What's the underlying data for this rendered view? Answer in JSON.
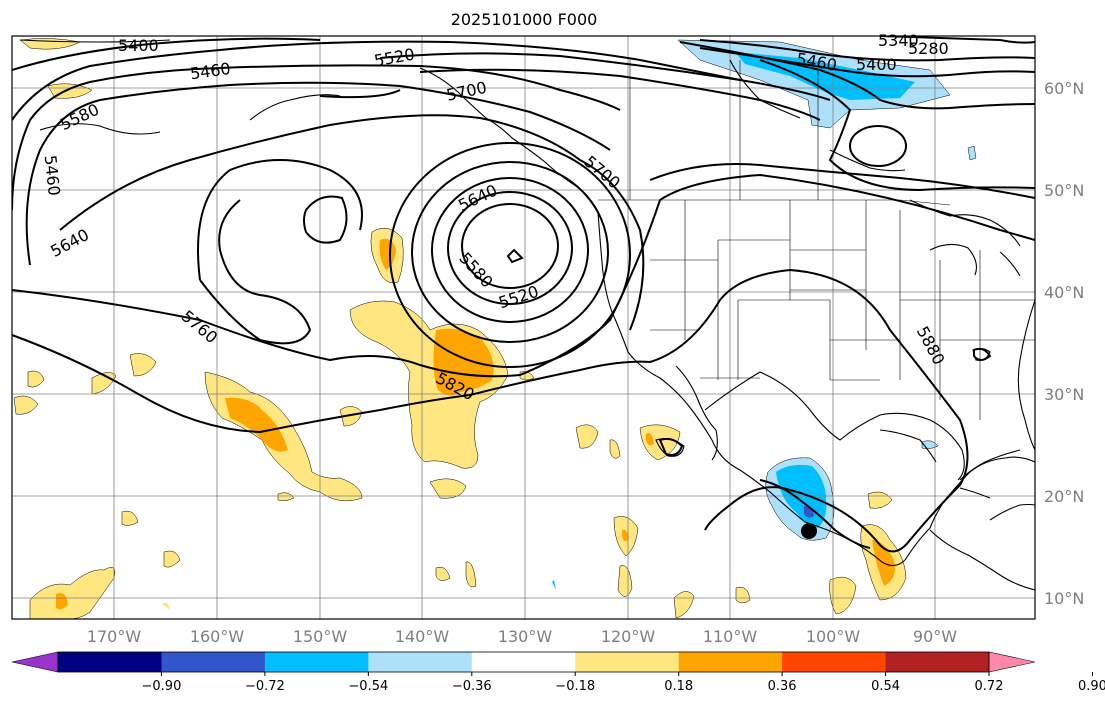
{
  "title": "2025101000 F000",
  "map": {
    "lat_labels": [
      "60°N",
      "50°N",
      "40°N",
      "30°N",
      "20°N",
      "10°N"
    ],
    "lon_labels": [
      "170°W",
      "160°W",
      "150°W",
      "140°W",
      "130°W",
      "120°W",
      "110°W",
      "100°W",
      "90°W"
    ],
    "contour_labels": [
      "5400",
      "5460",
      "5520",
      "5580",
      "5460",
      "5640",
      "5700",
      "5640",
      "5700",
      "5580",
      "5520",
      "5760",
      "5820",
      "5880",
      "5460",
      "5400",
      "5340",
      "5280"
    ],
    "contour_color": "#000000",
    "lake_marker": "black-dot"
  },
  "colorbar": {
    "tick_labels": [
      "−0.90",
      "−0.72",
      "−0.54",
      "−0.36",
      "−0.18",
      "0.18",
      "0.36",
      "0.54",
      "0.72",
      "0.90"
    ],
    "colors": [
      "#9933cc",
      "#000080",
      "#3355cc",
      "#00bfff",
      "#aee0fa",
      "#ffffff",
      "#ffe680",
      "#ffa500",
      "#ff4500",
      "#b22222",
      "#ff88aa"
    ]
  }
}
